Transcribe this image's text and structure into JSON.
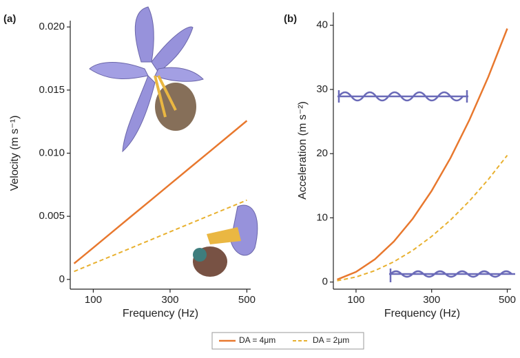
{
  "chart_data": [
    {
      "type": "line",
      "label": "(a)",
      "y_label": "Velocity (m s⁻¹)",
      "x_label": "Frequency (Hz)",
      "x": [
        50,
        100,
        150,
        200,
        250,
        300,
        350,
        400,
        450,
        500
      ],
      "series": [
        {
          "name": "DA = 4μm",
          "color": "#e8782e",
          "dashed": false,
          "values": [
            0.00126,
            0.00251,
            0.00377,
            0.00503,
            0.00628,
            0.00754,
            0.0088,
            0.01005,
            0.01131,
            0.01257
          ]
        },
        {
          "name": "DA = 2μm",
          "color": "#e8b02e",
          "dashed": true,
          "values": [
            0.00063,
            0.00126,
            0.00188,
            0.00251,
            0.00314,
            0.00377,
            0.0044,
            0.00503,
            0.00565,
            0.00628
          ]
        }
      ],
      "xlim": [
        40,
        510
      ],
      "xticks": [
        100,
        300,
        500
      ],
      "ylim": [
        -0.0005,
        0.0205
      ],
      "yticks": [
        0,
        {
          "value": 0.005,
          "label": "0.005"
        },
        {
          "value": 0.01,
          "label": "0.010"
        },
        {
          "value": 0.015,
          "label": "0.015"
        },
        {
          "value": 0.02,
          "label": "0.020"
        }
      ]
    },
    {
      "type": "line",
      "label": "(b)",
      "y_label": "Acceleration (m s⁻²)",
      "x_label": "Frequency (Hz)",
      "x": [
        50,
        100,
        150,
        200,
        250,
        300,
        350,
        400,
        450,
        500
      ],
      "series": [
        {
          "name": "DA = 4μm",
          "color": "#e8782e",
          "dashed": false,
          "values": [
            0.39,
            1.58,
            3.55,
            6.32,
            9.87,
            14.21,
            19.34,
            25.27,
            31.98,
            39.48
          ]
        },
        {
          "name": "DA = 2μm",
          "color": "#e8b02e",
          "dashed": true,
          "values": [
            0.2,
            0.79,
            1.78,
            3.16,
            4.93,
            7.11,
            9.67,
            12.63,
            15.99,
            19.74
          ]
        }
      ],
      "xlim": [
        40,
        510
      ],
      "xticks": [
        100,
        300,
        500
      ],
      "ylim": [
        -1,
        42
      ],
      "yticks": [
        0,
        10,
        20,
        30,
        40
      ]
    }
  ]
}
